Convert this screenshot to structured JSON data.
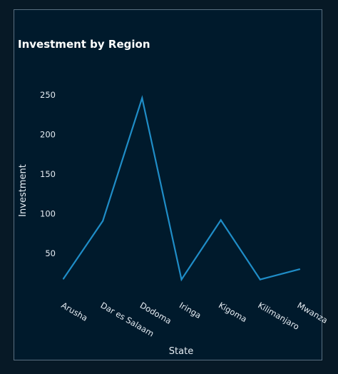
{
  "chart_data": {
    "type": "line",
    "title": "Investment by Region",
    "xlabel": "State",
    "ylabel": "Investment",
    "categories": [
      "Arusha",
      "Dar es Salaam",
      "Dodoma",
      "Iringa",
      "Kigoma",
      "Kilimanjaro",
      "Mwanza"
    ],
    "series": [
      {
        "values": [
          18,
          91,
          246,
          17,
          92,
          17,
          30
        ]
      }
    ],
    "yticks": [
      50,
      100,
      150,
      200,
      250
    ],
    "ylim": [
      0,
      260
    ],
    "grid": false,
    "legend": "none",
    "colors": {
      "line": "#1f8dc7",
      "background": "#001a2c",
      "text": "#e6edf3"
    }
  }
}
